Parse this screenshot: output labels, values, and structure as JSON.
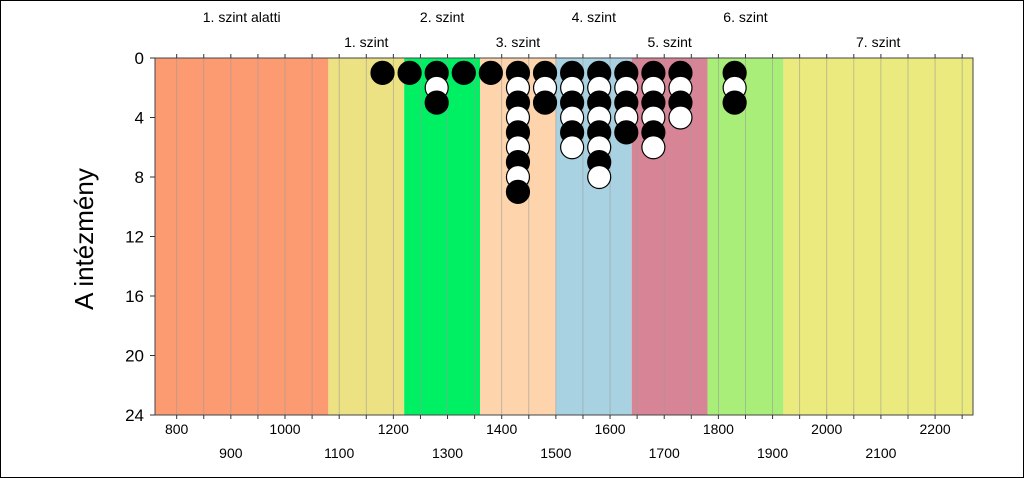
{
  "chart_data": {
    "type": "scatter",
    "ylabel": "A intézmény",
    "xlim": [
      760,
      2270
    ],
    "ylim": [
      24,
      0
    ],
    "x_ticks_top_row": [
      800,
      1000,
      1200,
      1400,
      1600,
      1800,
      2000,
      2200
    ],
    "x_ticks_bottom_row": [
      900,
      1100,
      1300,
      1500,
      1700,
      1900,
      2100
    ],
    "y_ticks": [
      0,
      4,
      8,
      12,
      16,
      20,
      24
    ],
    "grid": true,
    "bands": [
      {
        "label": "1. szint alatti",
        "start": 760,
        "end": 1080,
        "color": "#fc9b72"
      },
      {
        "label": "1. szint",
        "start": 1080,
        "end": 1220,
        "color": "#ece283"
      },
      {
        "label": "2. szint",
        "start": 1220,
        "end": 1360,
        "color": "#00f064"
      },
      {
        "label": "3. szint",
        "start": 1360,
        "end": 1500,
        "color": "#fdd4ac"
      },
      {
        "label": "4. szint",
        "start": 1500,
        "end": 1640,
        "color": "#a8d2e2"
      },
      {
        "label": "5. szint",
        "start": 1640,
        "end": 1780,
        "color": "#d78596"
      },
      {
        "label": "6. szint",
        "start": 1780,
        "end": 1920,
        "color": "#a8ee78"
      },
      {
        "label": "7. szint",
        "start": 1920,
        "end": 2270,
        "color": "#ebea7e"
      }
    ],
    "columns": [
      {
        "x": 1180,
        "points": [
          "black"
        ]
      },
      {
        "x": 1230,
        "points": [
          "black"
        ]
      },
      {
        "x": 1280,
        "points": [
          "black",
          "white",
          "black"
        ]
      },
      {
        "x": 1330,
        "points": [
          "black"
        ]
      },
      {
        "x": 1380,
        "points": [
          "black"
        ]
      },
      {
        "x": 1430,
        "points": [
          "black",
          "white",
          "black",
          "white",
          "black",
          "white",
          "black",
          "white",
          "black"
        ]
      },
      {
        "x": 1480,
        "points": [
          "black",
          "white",
          "black"
        ]
      },
      {
        "x": 1530,
        "points": [
          "black",
          "white",
          "black",
          "white",
          "black",
          "white"
        ]
      },
      {
        "x": 1580,
        "points": [
          "black",
          "white",
          "black",
          "white",
          "black",
          "white",
          "black",
          "white"
        ]
      },
      {
        "x": 1630,
        "points": [
          "black",
          "white",
          "black",
          "white",
          "black"
        ]
      },
      {
        "x": 1680,
        "points": [
          "black",
          "white",
          "black",
          "white",
          "black",
          "white"
        ]
      },
      {
        "x": 1730,
        "points": [
          "black",
          "white",
          "black",
          "white"
        ]
      },
      {
        "x": 1830,
        "points": [
          "black",
          "white",
          "black"
        ]
      }
    ]
  }
}
